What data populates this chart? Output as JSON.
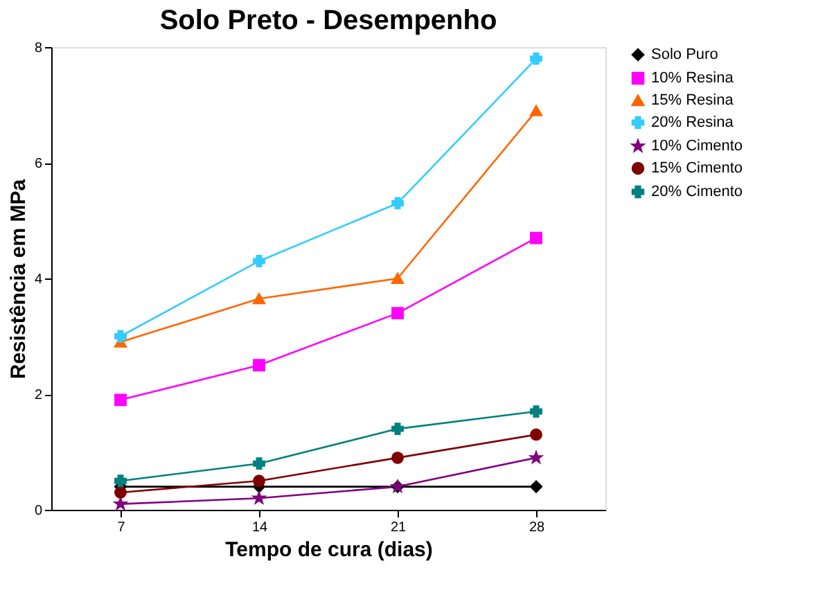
{
  "chart_data": {
    "type": "line",
    "title": "Solo Preto - Desempenho",
    "xlabel": "Tempo de cura (dias)",
    "ylabel": "Resistência em MPa",
    "categories": [
      "7",
      "14",
      "21",
      "28"
    ],
    "ylim": [
      0,
      8
    ],
    "yticks": [
      0,
      2,
      4,
      6,
      8
    ],
    "grid": false,
    "legend": "right",
    "series": [
      {
        "name": "Solo Puro",
        "color": "#000000",
        "marker": "diamond",
        "values": [
          0.4,
          0.4,
          0.4,
          0.4
        ]
      },
      {
        "name": "10% Resina",
        "color": "#ff00ff",
        "marker": "square",
        "values": [
          1.9,
          2.5,
          3.4,
          4.7
        ]
      },
      {
        "name": "15% Resina",
        "color": "#ff6600",
        "marker": "triangle",
        "values": [
          2.9,
          3.65,
          4.0,
          6.9
        ]
      },
      {
        "name": "20%  Resina",
        "color": "#33ccff",
        "marker": "cross",
        "values": [
          3.0,
          4.3,
          5.3,
          7.8
        ]
      },
      {
        "name": "10% Cimento",
        "color": "#800080",
        "marker": "star",
        "values": [
          0.1,
          0.2,
          0.4,
          0.9
        ]
      },
      {
        "name": "15% Cimento",
        "color": "#800000",
        "marker": "circle",
        "values": [
          0.3,
          0.5,
          0.9,
          1.3
        ]
      },
      {
        "name": "20%  Cimento",
        "color": "#008080",
        "marker": "cross",
        "values": [
          0.5,
          0.8,
          1.4,
          1.7
        ]
      }
    ]
  }
}
